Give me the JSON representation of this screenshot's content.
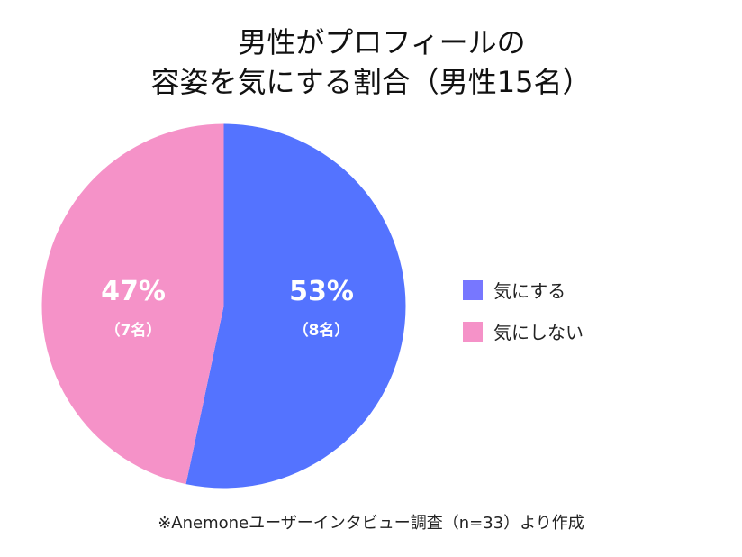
{
  "title": {
    "line1": "男性がプロフィールの",
    "line2": "容姿を気にする割合（男性15名）"
  },
  "slices": [
    {
      "label": "気にする",
      "percent_label": "53%",
      "count_label": "（8名）",
      "value": 8,
      "color": "#5473ff",
      "legend_color": "#7777ff"
    },
    {
      "label": "気にしない",
      "percent_label": "47%",
      "count_label": "（7名）",
      "value": 7,
      "color": "#f592c8",
      "legend_color": "#f592c8"
    }
  ],
  "legend": {
    "items": [
      {
        "label": "気にする",
        "color": "#7777ff"
      },
      {
        "label": "気にしない",
        "color": "#f592c8"
      }
    ]
  },
  "footnote": "※Anemoneユーザーインタビュー調査（n=33）より作成",
  "chart_data": {
    "type": "pie",
    "title": "男性がプロフィールの容姿を気にする割合（男性15名）",
    "categories": [
      "気にする",
      "気にしない"
    ],
    "values": [
      8,
      7
    ],
    "percentages": [
      53,
      47
    ],
    "colors": [
      "#5473ff",
      "#f592c8"
    ],
    "legend_position": "right",
    "start_angle": "12 o'clock, clockwise",
    "annotation": "※Anemoneユーザーインタビュー調査（n=33）より作成"
  }
}
